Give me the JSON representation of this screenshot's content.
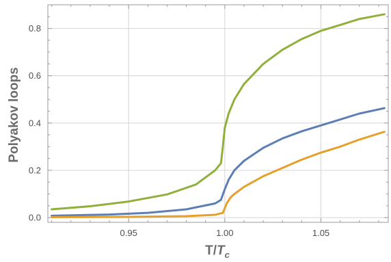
{
  "chart_data": {
    "type": "line",
    "xlabel": {
      "main": "T/",
      "italic": "T",
      "sub": "c"
    },
    "ylabel": "Polyakov loops",
    "xlim": [
      0.908,
      1.085
    ],
    "ylim": [
      -0.02,
      0.9
    ],
    "xticks": [
      0.95,
      1.0,
      1.05
    ],
    "xtick_labels": [
      "0.95",
      "1.00",
      "1.05"
    ],
    "yticks": [
      0.0,
      0.2,
      0.4,
      0.6,
      0.8
    ],
    "ytick_labels": [
      "0.0",
      "0.2",
      "0.4",
      "0.6",
      "0.8"
    ],
    "grid": true,
    "series": [
      {
        "color": "#8fb03a",
        "points": [
          [
            0.91,
            0.035
          ],
          [
            0.93,
            0.048
          ],
          [
            0.95,
            0.068
          ],
          [
            0.97,
            0.098
          ],
          [
            0.985,
            0.14
          ],
          [
            0.995,
            0.2
          ],
          [
            0.998,
            0.23
          ],
          [
            0.999,
            0.3
          ],
          [
            1.0,
            0.38
          ],
          [
            1.002,
            0.44
          ],
          [
            1.005,
            0.5
          ],
          [
            1.01,
            0.565
          ],
          [
            1.02,
            0.65
          ],
          [
            1.03,
            0.71
          ],
          [
            1.04,
            0.755
          ],
          [
            1.05,
            0.79
          ],
          [
            1.06,
            0.815
          ],
          [
            1.07,
            0.84
          ],
          [
            1.083,
            0.86
          ]
        ]
      },
      {
        "color": "#5b7fb5",
        "points": [
          [
            0.91,
            0.008
          ],
          [
            0.94,
            0.013
          ],
          [
            0.96,
            0.02
          ],
          [
            0.98,
            0.035
          ],
          [
            0.995,
            0.06
          ],
          [
            0.998,
            0.075
          ],
          [
            1.0,
            0.12
          ],
          [
            1.002,
            0.16
          ],
          [
            1.005,
            0.2
          ],
          [
            1.01,
            0.24
          ],
          [
            1.02,
            0.295
          ],
          [
            1.03,
            0.335
          ],
          [
            1.04,
            0.365
          ],
          [
            1.05,
            0.39
          ],
          [
            1.06,
            0.415
          ],
          [
            1.07,
            0.44
          ],
          [
            1.083,
            0.463
          ]
        ]
      },
      {
        "color": "#e5a02b",
        "points": [
          [
            0.91,
            0.002
          ],
          [
            0.95,
            0.003
          ],
          [
            0.98,
            0.006
          ],
          [
            0.995,
            0.012
          ],
          [
            0.999,
            0.02
          ],
          [
            1.0,
            0.04
          ],
          [
            1.001,
            0.06
          ],
          [
            1.003,
            0.085
          ],
          [
            1.005,
            0.1
          ],
          [
            1.01,
            0.13
          ],
          [
            1.02,
            0.175
          ],
          [
            1.03,
            0.21
          ],
          [
            1.04,
            0.245
          ],
          [
            1.05,
            0.275
          ],
          [
            1.06,
            0.3
          ],
          [
            1.07,
            0.33
          ],
          [
            1.083,
            0.363
          ]
        ]
      }
    ]
  }
}
